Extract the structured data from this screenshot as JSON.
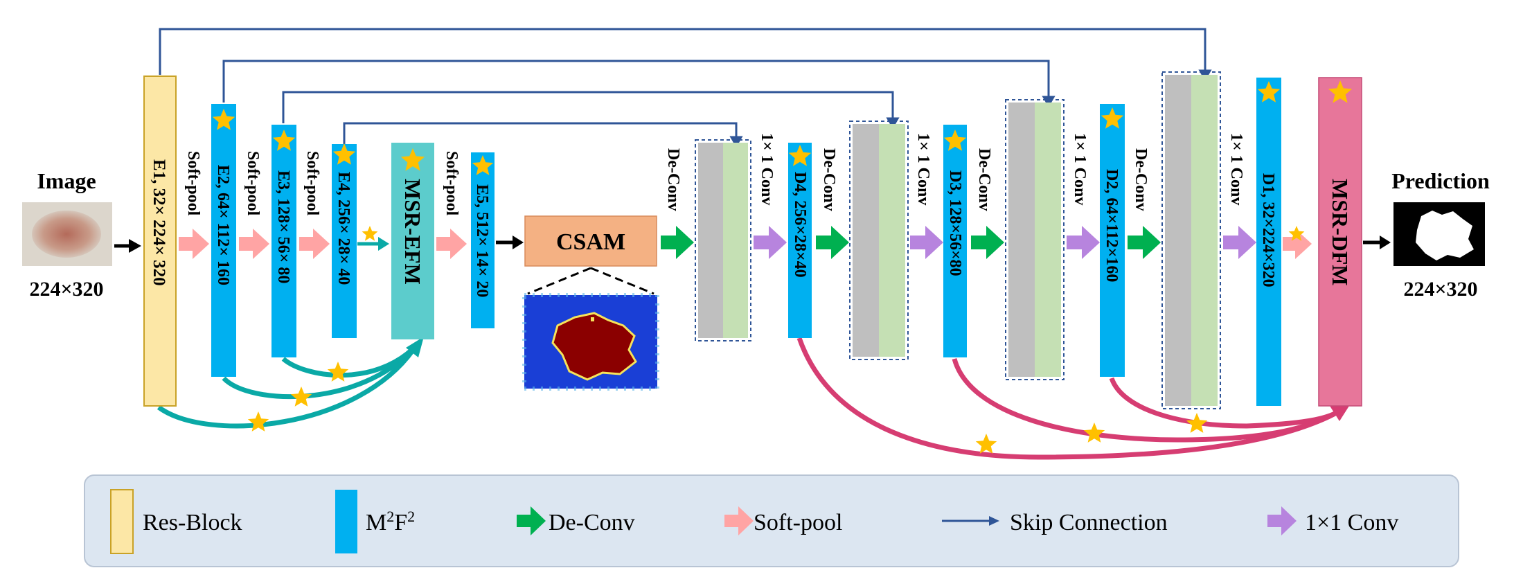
{
  "input": {
    "title": "Image",
    "size": "224×320"
  },
  "output": {
    "title": "Prediction",
    "size": "224×320"
  },
  "encoder": [
    {
      "id": "e1",
      "label": "E1, 32× 224× 320"
    },
    {
      "id": "e2",
      "label": "E2, 64× 112× 160"
    },
    {
      "id": "e3",
      "label": "E3, 128× 56× 80"
    },
    {
      "id": "e4",
      "label": "E4, 256× 28× 40"
    },
    {
      "id": "e5",
      "label": "E5, 512× 14× 20"
    }
  ],
  "decoder": [
    {
      "id": "d4",
      "label": "D4, 256×28×40"
    },
    {
      "id": "d3",
      "label": "D3, 128×56×80"
    },
    {
      "id": "d2",
      "label": "D2, 64×112×160"
    },
    {
      "id": "d1",
      "label": "D1, 32×224×320"
    }
  ],
  "modules": {
    "efm": "MSR-EFM",
    "csam": "CSAM",
    "dfm": "MSR-DFM"
  },
  "ops": {
    "softpool": "Soft-pool",
    "deconv": "De-Conv",
    "conv1x1": "1× 1 Conv"
  },
  "legend": {
    "res_block": "Res-Block",
    "m2f2": "M",
    "m2f2_sup1": "2",
    "m2f2_mid": "F",
    "m2f2_sup2": "2",
    "deconv": "De-Conv",
    "softpool": "Soft-pool",
    "skip": "Skip Connection",
    "conv1x1": "1×1 Conv"
  },
  "colors": {
    "res_block_fill": "#fce7a6",
    "res_block_stroke": "#c9a227",
    "m2f2": "#00b0f0",
    "deconv": "#00b050",
    "softpool": "#ffa4a4",
    "conv1x1": "#b784de",
    "skip": "#2f5597",
    "encoder_fuse": "#0aa9a6",
    "decoder_fuse": "#d63d72",
    "efm": "#5ccccc",
    "csam": "#f4b183",
    "dfm": "#e7769a",
    "star": "#ffc000",
    "concat_gray": "#bfbfbf",
    "concat_green": "#c5e0b4",
    "legend_bg": "#dce6f1"
  }
}
